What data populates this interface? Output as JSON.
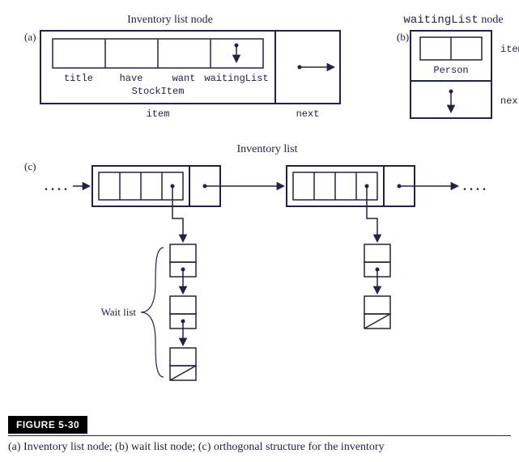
{
  "titles": {
    "invNode": "Inventory list node",
    "wlNode": "waitingList node",
    "invList": "Inventory list",
    "waitList": "Wait list"
  },
  "partA": {
    "marker": "(a)",
    "fields": [
      "title",
      "have",
      "want",
      "waitingList"
    ],
    "classLabel": "StockItem",
    "itemLabel": "item",
    "nextLabel": "next"
  },
  "partB": {
    "marker": "(b)",
    "classLabel": "Person",
    "itemLabel": "item",
    "nextLabel": "next"
  },
  "partC": {
    "marker": "(c)"
  },
  "figure": {
    "label": "FIGURE 5-30",
    "caption": "(a) Inventory list node; (b) wait list node; (c) orthogonal structure for the inventory"
  },
  "style": {
    "lineColor": "#222244",
    "lineWidth": 1.5,
    "outerLineWidth": 2,
    "background": "#ffffff"
  }
}
